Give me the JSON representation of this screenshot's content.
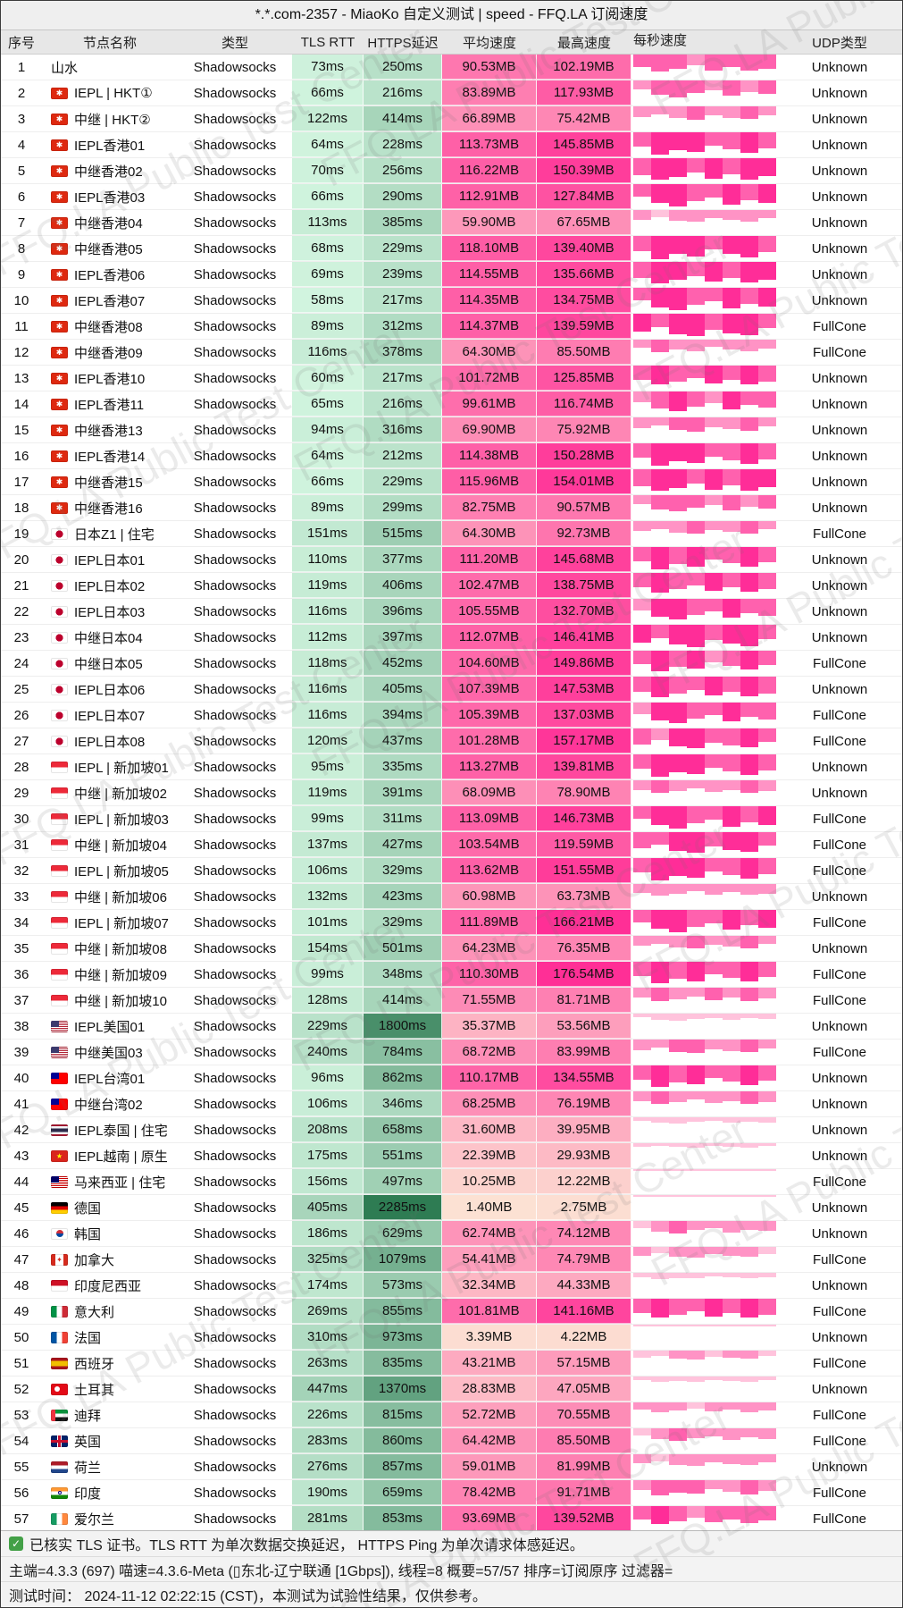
{
  "title": "*.*.com-2357 - MiaoKo 自定义测试 | speed - FFQ.LA 订阅速度",
  "watermark": "FFQ.LA Public Test Center",
  "columns": [
    "序号",
    "节点名称",
    "类型",
    "TLS RTT",
    "HTTPS延迟",
    "平均速度",
    "最高速度",
    "每秒速度",
    "UDP类型"
  ],
  "colors": {
    "latency_light": "#d4f6e1",
    "latency_dark": "#2d7b52",
    "speed_light": "#fce4d4",
    "speed_hot": "#ff2f96",
    "bar_hot": "#ff2d98",
    "bar_mid": "#ff61ae",
    "bar_soft": "#ff93c5",
    "bar_pale": "#ffc3dc",
    "check_green": "#43a047"
  },
  "spark_patterns": [
    [
      0.72,
      0.95,
      0.8,
      0.62,
      0.88,
      0.7,
      0.92,
      0.78
    ],
    [
      0.55,
      0.85,
      1.0,
      0.75,
      0.6,
      0.9,
      0.7,
      0.82
    ],
    [
      0.8,
      0.6,
      0.9,
      1.0,
      0.7,
      0.85,
      0.95,
      0.65
    ],
    [
      0.65,
      1.0,
      0.78,
      0.88,
      0.58,
      0.75,
      0.9,
      0.7
    ]
  ],
  "rows": [
    {
      "num": "1",
      "name": "山水",
      "flag": "",
      "type": "Shadowsocks",
      "tls": "73ms",
      "https": "250ms",
      "avg": "90.53MB",
      "max": "102.19MB",
      "udp": "Unknown"
    },
    {
      "num": "2",
      "name": "IEPL | HKT①",
      "flag": "hk",
      "type": "Shadowsocks",
      "tls": "66ms",
      "https": "216ms",
      "avg": "83.89MB",
      "max": "117.93MB",
      "udp": "Unknown"
    },
    {
      "num": "3",
      "name": "中继 | HKT②",
      "flag": "hk",
      "type": "Shadowsocks",
      "tls": "122ms",
      "https": "414ms",
      "avg": "66.89MB",
      "max": "75.42MB",
      "udp": "Unknown"
    },
    {
      "num": "4",
      "name": "IEPL香港01",
      "flag": "hk",
      "type": "Shadowsocks",
      "tls": "64ms",
      "https": "228ms",
      "avg": "113.73MB",
      "max": "145.85MB",
      "udp": "Unknown"
    },
    {
      "num": "5",
      "name": "中继香港02",
      "flag": "hk",
      "type": "Shadowsocks",
      "tls": "70ms",
      "https": "256ms",
      "avg": "116.22MB",
      "max": "150.39MB",
      "udp": "Unknown"
    },
    {
      "num": "6",
      "name": "IEPL香港03",
      "flag": "hk",
      "type": "Shadowsocks",
      "tls": "66ms",
      "https": "290ms",
      "avg": "112.91MB",
      "max": "127.84MB",
      "udp": "Unknown"
    },
    {
      "num": "7",
      "name": "中继香港04",
      "flag": "hk",
      "type": "Shadowsocks",
      "tls": "113ms",
      "https": "385ms",
      "avg": "59.90MB",
      "max": "67.65MB",
      "udp": "Unknown"
    },
    {
      "num": "8",
      "name": "中继香港05",
      "flag": "hk",
      "type": "Shadowsocks",
      "tls": "68ms",
      "https": "229ms",
      "avg": "118.10MB",
      "max": "139.40MB",
      "udp": "Unknown"
    },
    {
      "num": "9",
      "name": "IEPL香港06",
      "flag": "hk",
      "type": "Shadowsocks",
      "tls": "69ms",
      "https": "239ms",
      "avg": "114.55MB",
      "max": "135.66MB",
      "udp": "Unknown"
    },
    {
      "num": "10",
      "name": "IEPL香港07",
      "flag": "hk",
      "type": "Shadowsocks",
      "tls": "58ms",
      "https": "217ms",
      "avg": "114.35MB",
      "max": "134.75MB",
      "udp": "Unknown"
    },
    {
      "num": "11",
      "name": "中继香港08",
      "flag": "hk",
      "type": "Shadowsocks",
      "tls": "89ms",
      "https": "312ms",
      "avg": "114.37MB",
      "max": "139.59MB",
      "udp": "FullCone"
    },
    {
      "num": "12",
      "name": "中继香港09",
      "flag": "hk",
      "type": "Shadowsocks",
      "tls": "116ms",
      "https": "378ms",
      "avg": "64.30MB",
      "max": "85.50MB",
      "udp": "FullCone"
    },
    {
      "num": "13",
      "name": "IEPL香港10",
      "flag": "hk",
      "type": "Shadowsocks",
      "tls": "60ms",
      "https": "217ms",
      "avg": "101.72MB",
      "max": "125.85MB",
      "udp": "Unknown"
    },
    {
      "num": "14",
      "name": "IEPL香港11",
      "flag": "hk",
      "type": "Shadowsocks",
      "tls": "65ms",
      "https": "216ms",
      "avg": "99.61MB",
      "max": "116.74MB",
      "udp": "Unknown"
    },
    {
      "num": "15",
      "name": "中继香港13",
      "flag": "hk",
      "type": "Shadowsocks",
      "tls": "94ms",
      "https": "316ms",
      "avg": "69.90MB",
      "max": "75.92MB",
      "udp": "Unknown"
    },
    {
      "num": "16",
      "name": "IEPL香港14",
      "flag": "hk",
      "type": "Shadowsocks",
      "tls": "64ms",
      "https": "212ms",
      "avg": "114.38MB",
      "max": "150.28MB",
      "udp": "Unknown"
    },
    {
      "num": "17",
      "name": "中继香港15",
      "flag": "hk",
      "type": "Shadowsocks",
      "tls": "66ms",
      "https": "229ms",
      "avg": "115.96MB",
      "max": "154.01MB",
      "udp": "Unknown"
    },
    {
      "num": "18",
      "name": "中继香港16",
      "flag": "hk",
      "type": "Shadowsocks",
      "tls": "89ms",
      "https": "299ms",
      "avg": "82.75MB",
      "max": "90.57MB",
      "udp": "Unknown"
    },
    {
      "num": "19",
      "name": "日本Z1 | 住宅",
      "flag": "jp",
      "type": "Shadowsocks",
      "tls": "151ms",
      "https": "515ms",
      "avg": "64.30MB",
      "max": "92.73MB",
      "udp": "FullCone"
    },
    {
      "num": "20",
      "name": "IEPL日本01",
      "flag": "jp",
      "type": "Shadowsocks",
      "tls": "110ms",
      "https": "377ms",
      "avg": "111.20MB",
      "max": "145.68MB",
      "udp": "Unknown"
    },
    {
      "num": "21",
      "name": "IEPL日本02",
      "flag": "jp",
      "type": "Shadowsocks",
      "tls": "119ms",
      "https": "406ms",
      "avg": "102.47MB",
      "max": "138.75MB",
      "udp": "Unknown"
    },
    {
      "num": "22",
      "name": "IEPL日本03",
      "flag": "jp",
      "type": "Shadowsocks",
      "tls": "116ms",
      "https": "396ms",
      "avg": "105.55MB",
      "max": "132.70MB",
      "udp": "Unknown"
    },
    {
      "num": "23",
      "name": "中继日本04",
      "flag": "jp",
      "type": "Shadowsocks",
      "tls": "112ms",
      "https": "397ms",
      "avg": "112.07MB",
      "max": "146.41MB",
      "udp": "Unknown"
    },
    {
      "num": "24",
      "name": "中继日本05",
      "flag": "jp",
      "type": "Shadowsocks",
      "tls": "118ms",
      "https": "452ms",
      "avg": "104.60MB",
      "max": "149.86MB",
      "udp": "FullCone"
    },
    {
      "num": "25",
      "name": "IEPL日本06",
      "flag": "jp",
      "type": "Shadowsocks",
      "tls": "116ms",
      "https": "405ms",
      "avg": "107.39MB",
      "max": "147.53MB",
      "udp": "Unknown"
    },
    {
      "num": "26",
      "name": "IEPL日本07",
      "flag": "jp",
      "type": "Shadowsocks",
      "tls": "116ms",
      "https": "394ms",
      "avg": "105.39MB",
      "max": "137.03MB",
      "udp": "FullCone"
    },
    {
      "num": "27",
      "name": "IEPL日本08",
      "flag": "jp",
      "type": "Shadowsocks",
      "tls": "120ms",
      "https": "437ms",
      "avg": "101.28MB",
      "max": "157.17MB",
      "udp": "FullCone"
    },
    {
      "num": "28",
      "name": "IEPL | 新加坡01",
      "flag": "sg",
      "type": "Shadowsocks",
      "tls": "95ms",
      "https": "335ms",
      "avg": "113.27MB",
      "max": "139.81MB",
      "udp": "Unknown"
    },
    {
      "num": "29",
      "name": "中继 | 新加坡02",
      "flag": "sg",
      "type": "Shadowsocks",
      "tls": "119ms",
      "https": "391ms",
      "avg": "68.09MB",
      "max": "78.90MB",
      "udp": "Unknown"
    },
    {
      "num": "30",
      "name": "IEPL | 新加坡03",
      "flag": "sg",
      "type": "Shadowsocks",
      "tls": "99ms",
      "https": "311ms",
      "avg": "113.09MB",
      "max": "146.73MB",
      "udp": "FullCone"
    },
    {
      "num": "31",
      "name": "中继 | 新加坡04",
      "flag": "sg",
      "type": "Shadowsocks",
      "tls": "137ms",
      "https": "427ms",
      "avg": "103.54MB",
      "max": "119.59MB",
      "udp": "FullCone"
    },
    {
      "num": "32",
      "name": "IEPL | 新加坡05",
      "flag": "sg",
      "type": "Shadowsocks",
      "tls": "106ms",
      "https": "329ms",
      "avg": "113.62MB",
      "max": "151.55MB",
      "udp": "FullCone"
    },
    {
      "num": "33",
      "name": "中继 | 新加坡06",
      "flag": "sg",
      "type": "Shadowsocks",
      "tls": "132ms",
      "https": "423ms",
      "avg": "60.98MB",
      "max": "63.73MB",
      "udp": "Unknown"
    },
    {
      "num": "34",
      "name": "IEPL | 新加坡07",
      "flag": "sg",
      "type": "Shadowsocks",
      "tls": "101ms",
      "https": "329ms",
      "avg": "111.89MB",
      "max": "166.21MB",
      "udp": "FullCone"
    },
    {
      "num": "35",
      "name": "中继 | 新加坡08",
      "flag": "sg",
      "type": "Shadowsocks",
      "tls": "154ms",
      "https": "501ms",
      "avg": "64.23MB",
      "max": "76.35MB",
      "udp": "Unknown"
    },
    {
      "num": "36",
      "name": "中继 | 新加坡09",
      "flag": "sg",
      "type": "Shadowsocks",
      "tls": "99ms",
      "https": "348ms",
      "avg": "110.30MB",
      "max": "176.54MB",
      "udp": "FullCone"
    },
    {
      "num": "37",
      "name": "中继 | 新加坡10",
      "flag": "sg",
      "type": "Shadowsocks",
      "tls": "128ms",
      "https": "414ms",
      "avg": "71.55MB",
      "max": "81.71MB",
      "udp": "FullCone"
    },
    {
      "num": "38",
      "name": "IEPL美国01",
      "flag": "us",
      "type": "Shadowsocks",
      "tls": "229ms",
      "https": "1800ms",
      "avg": "35.37MB",
      "max": "53.56MB",
      "udp": "Unknown"
    },
    {
      "num": "39",
      "name": "中继美国03",
      "flag": "us",
      "type": "Shadowsocks",
      "tls": "240ms",
      "https": "784ms",
      "avg": "68.72MB",
      "max": "83.99MB",
      "udp": "FullCone"
    },
    {
      "num": "40",
      "name": "IEPL台湾01",
      "flag": "tw",
      "type": "Shadowsocks",
      "tls": "96ms",
      "https": "862ms",
      "avg": "110.17MB",
      "max": "134.55MB",
      "udp": "Unknown"
    },
    {
      "num": "41",
      "name": "中继台湾02",
      "flag": "tw",
      "type": "Shadowsocks",
      "tls": "106ms",
      "https": "346ms",
      "avg": "68.25MB",
      "max": "76.19MB",
      "udp": "Unknown"
    },
    {
      "num": "42",
      "name": "IEPL泰国 | 住宅",
      "flag": "th",
      "type": "Shadowsocks",
      "tls": "208ms",
      "https": "658ms",
      "avg": "31.60MB",
      "max": "39.95MB",
      "udp": "Unknown"
    },
    {
      "num": "43",
      "name": "IEPL越南 | 原生",
      "flag": "vn",
      "type": "Shadowsocks",
      "tls": "175ms",
      "https": "551ms",
      "avg": "22.39MB",
      "max": "29.93MB",
      "udp": "Unknown"
    },
    {
      "num": "44",
      "name": "马来西亚 | 住宅",
      "flag": "my",
      "type": "Shadowsocks",
      "tls": "156ms",
      "https": "497ms",
      "avg": "10.25MB",
      "max": "12.22MB",
      "udp": "FullCone"
    },
    {
      "num": "45",
      "name": "德国",
      "flag": "de",
      "type": "Shadowsocks",
      "tls": "405ms",
      "https": "2285ms",
      "avg": "1.40MB",
      "max": "2.75MB",
      "udp": "Unknown"
    },
    {
      "num": "46",
      "name": "韩国",
      "flag": "kr",
      "type": "Shadowsocks",
      "tls": "186ms",
      "https": "629ms",
      "avg": "62.74MB",
      "max": "74.12MB",
      "udp": "Unknown"
    },
    {
      "num": "47",
      "name": "加拿大",
      "flag": "ca",
      "type": "Shadowsocks",
      "tls": "325ms",
      "https": "1079ms",
      "avg": "54.41MB",
      "max": "74.79MB",
      "udp": "FullCone"
    },
    {
      "num": "48",
      "name": "印度尼西亚",
      "flag": "id",
      "type": "Shadowsocks",
      "tls": "174ms",
      "https": "573ms",
      "avg": "32.34MB",
      "max": "44.33MB",
      "udp": "Unknown"
    },
    {
      "num": "49",
      "name": "意大利",
      "flag": "it",
      "type": "Shadowsocks",
      "tls": "269ms",
      "https": "855ms",
      "avg": "101.81MB",
      "max": "141.16MB",
      "udp": "FullCone"
    },
    {
      "num": "50",
      "name": "法国",
      "flag": "fr",
      "type": "Shadowsocks",
      "tls": "310ms",
      "https": "973ms",
      "avg": "3.39MB",
      "max": "4.22MB",
      "udp": "Unknown"
    },
    {
      "num": "51",
      "name": "西班牙",
      "flag": "es",
      "type": "Shadowsocks",
      "tls": "263ms",
      "https": "835ms",
      "avg": "43.21MB",
      "max": "57.15MB",
      "udp": "FullCone"
    },
    {
      "num": "52",
      "name": "土耳其",
      "flag": "tr",
      "type": "Shadowsocks",
      "tls": "447ms",
      "https": "1370ms",
      "avg": "28.83MB",
      "max": "47.05MB",
      "udp": "Unknown"
    },
    {
      "num": "53",
      "name": "迪拜",
      "flag": "ae",
      "type": "Shadowsocks",
      "tls": "226ms",
      "https": "815ms",
      "avg": "52.72MB",
      "max": "70.55MB",
      "udp": "FullCone"
    },
    {
      "num": "54",
      "name": "英国",
      "flag": "gb",
      "type": "Shadowsocks",
      "tls": "283ms",
      "https": "860ms",
      "avg": "64.42MB",
      "max": "85.50MB",
      "udp": "FullCone"
    },
    {
      "num": "55",
      "name": "荷兰",
      "flag": "nl",
      "type": "Shadowsocks",
      "tls": "276ms",
      "https": "857ms",
      "avg": "59.01MB",
      "max": "81.99MB",
      "udp": "Unknown"
    },
    {
      "num": "56",
      "name": "印度",
      "flag": "in",
      "type": "Shadowsocks",
      "tls": "190ms",
      "https": "659ms",
      "avg": "78.42MB",
      "max": "91.71MB",
      "udp": "FullCone"
    },
    {
      "num": "57",
      "name": "爱尔兰",
      "flag": "ie",
      "type": "Shadowsocks",
      "tls": "281ms",
      "https": "853ms",
      "avg": "93.69MB",
      "max": "139.52MB",
      "udp": "FullCone"
    }
  ],
  "footer": {
    "line1": "已核实 TLS 证书。TLS RTT 为单次数据交换延迟， HTTPS Ping 为单次请求体感延迟。",
    "line2": "主端=4.3.3 (697) 喵速=4.3.6-Meta (▯东北-辽宁联通 [1Gbps]), 线程=8 概要=57/57 排序=订阅原序 过滤器=",
    "line3": "测试时间： 2024-11-12 02:22:15 (CST)，本测试为试验性结果，仅供参考。"
  }
}
